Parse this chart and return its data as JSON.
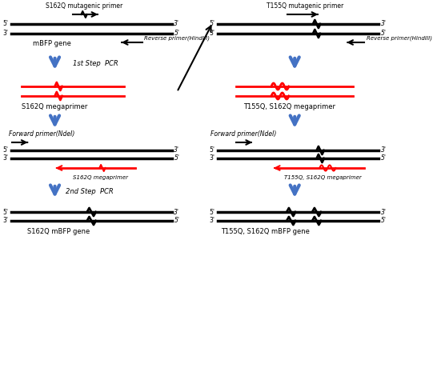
{
  "bg_color": "#ffffff",
  "left_panel": {
    "title_primer": "S162Q mutagenic primer",
    "label_mbfp": "mBFP gene",
    "label_reverse": "Reverse primer(HindIII)",
    "label_step1": "1st Step  PCR",
    "label_mega": "S162Q megaprimer",
    "label_forward": "Forward primer(NdeI)",
    "label_mega2": "S162Q megaprimer",
    "label_step2": "2nd Step  PCR",
    "label_product": "S162Q mBFP gene"
  },
  "right_panel": {
    "title_primer": "T155Q mutagenic primer",
    "label_reverse": "Reverse primer(HindIII)",
    "label_mega": "T155Q, S162Q megaprimer",
    "label_forward": "Forward primer(NdeI)",
    "label_mega2": "T155Q, S162Q megaprimer",
    "label_product": "T155Q, S162Q mBFP gene"
  },
  "colors": {
    "black": "#000000",
    "red": "#ff0000",
    "blue": "#4472c4"
  },
  "fontsize_small": 6,
  "fontsize_tiny": 5.5
}
